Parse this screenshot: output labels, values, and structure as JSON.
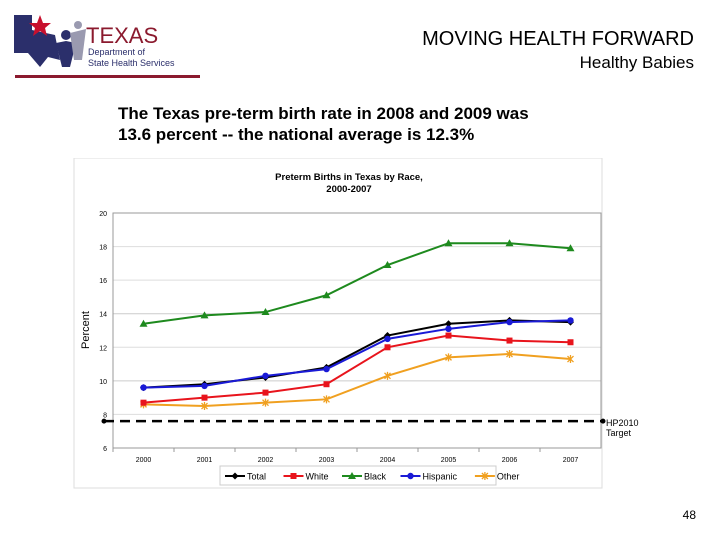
{
  "header": {
    "org_logo_text": "TEXAS Department of State Health Services",
    "title": "MOVING HEALTH FORWARD",
    "subtitle": "Healthy Babies"
  },
  "lead": {
    "line1": "The Texas pre-term birth rate in 2008 and 2009 was",
    "line2": "13.6 percent -- the national average is 12.3%"
  },
  "page_number": "48",
  "chart_data": {
    "type": "line",
    "title": "Preterm Births in Texas by Race,",
    "title_line2": "2000-2007",
    "xlabel": "",
    "ylabel": "Percent",
    "categories": [
      "2000",
      "2001",
      "2002",
      "2003",
      "2004",
      "2005",
      "2006",
      "2007"
    ],
    "ylim": [
      6,
      20
    ],
    "yticks": [
      "6",
      "8",
      "10",
      "12",
      "14",
      "16",
      "18",
      "20"
    ],
    "grid": true,
    "legend": "bottom",
    "series": [
      {
        "name": "Total",
        "color": "#000000",
        "marker": "diamond",
        "values": [
          9.6,
          9.8,
          10.2,
          10.8,
          12.7,
          13.4,
          13.6,
          13.5
        ]
      },
      {
        "name": "White",
        "color": "#e8141c",
        "marker": "square",
        "values": [
          8.7,
          9.0,
          9.3,
          9.8,
          12.0,
          12.7,
          12.4,
          12.3
        ]
      },
      {
        "name": "Black",
        "color": "#1e8a1e",
        "marker": "triangle",
        "values": [
          13.4,
          13.9,
          14.1,
          15.1,
          16.9,
          18.2,
          18.2,
          17.9
        ]
      },
      {
        "name": "Hispanic",
        "color": "#1a1ad6",
        "marker": "circle",
        "values": [
          9.6,
          9.7,
          10.3,
          10.7,
          12.5,
          13.1,
          13.5,
          13.6
        ]
      },
      {
        "name": "Other",
        "color": "#f0a020",
        "marker": "x",
        "values": [
          8.6,
          8.5,
          8.7,
          8.9,
          10.3,
          11.4,
          11.6,
          11.3
        ]
      }
    ],
    "target": {
      "value": 7.6,
      "label_line1": "HP2010",
      "label_line2": "Target"
    }
  }
}
